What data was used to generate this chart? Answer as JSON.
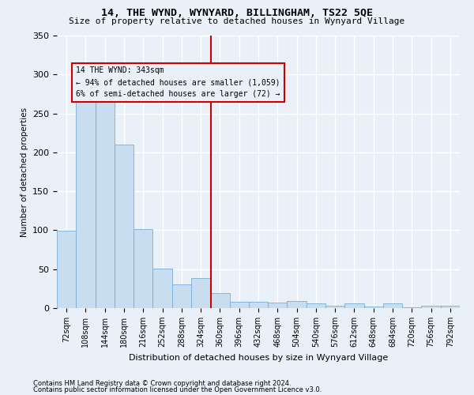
{
  "title": "14, THE WYND, WYNYARD, BILLINGHAM, TS22 5QE",
  "subtitle": "Size of property relative to detached houses in Wynyard Village",
  "xlabel": "Distribution of detached houses by size in Wynyard Village",
  "ylabel": "Number of detached properties",
  "bar_color": "#c9ddf0",
  "bar_edge_color": "#7aadd4",
  "categories": [
    "72sqm",
    "108sqm",
    "144sqm",
    "180sqm",
    "216sqm",
    "252sqm",
    "288sqm",
    "324sqm",
    "360sqm",
    "396sqm",
    "432sqm",
    "468sqm",
    "504sqm",
    "540sqm",
    "576sqm",
    "612sqm",
    "648sqm",
    "684sqm",
    "720sqm",
    "756sqm",
    "792sqm"
  ],
  "values": [
    99,
    287,
    265,
    210,
    101,
    51,
    30,
    39,
    19,
    8,
    8,
    7,
    9,
    6,
    3,
    6,
    2,
    6,
    1,
    3,
    3
  ],
  "vline_color": "#cc0000",
  "annotation_line1": "14 THE WYND: 343sqm",
  "annotation_line2": "← 94% of detached houses are smaller (1,059)",
  "annotation_line3": "6% of semi-detached houses are larger (72) →",
  "annotation_box_edge_color": "#cc0000",
  "ylim": [
    0,
    350
  ],
  "yticks": [
    0,
    50,
    100,
    150,
    200,
    250,
    300,
    350
  ],
  "footnote1": "Contains HM Land Registry data © Crown copyright and database right 2024.",
  "footnote2": "Contains public sector information licensed under the Open Government Licence v3.0.",
  "background_color": "#eaf0f8",
  "grid_color": "#ffffff",
  "property_sqm": 343,
  "bin_width": 36
}
